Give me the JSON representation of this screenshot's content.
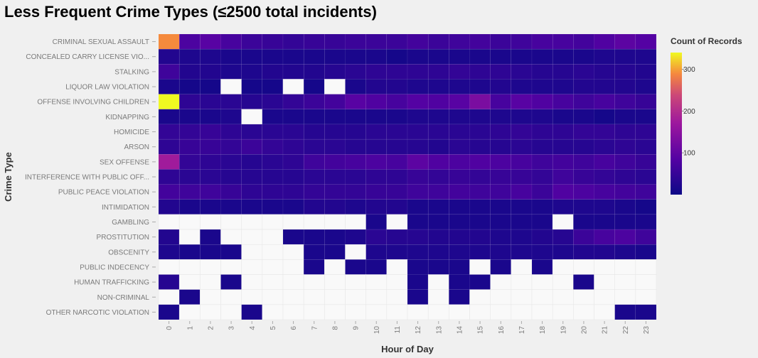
{
  "chart_data": {
    "type": "heatmap",
    "title": "Less Frequent Crime Types (≤2500 total incidents)",
    "xlabel": "Hour of Day",
    "ylabel": "Crime Type",
    "legend_title": "Count of Records",
    "legend_ticks": [
      "100",
      "200",
      "300"
    ],
    "color_range": [
      0,
      340
    ],
    "legend_placement": "right",
    "x": [
      "0",
      "1",
      "2",
      "3",
      "4",
      "5",
      "6",
      "7",
      "8",
      "9",
      "10",
      "11",
      "12",
      "13",
      "14",
      "15",
      "16",
      "17",
      "18",
      "19",
      "20",
      "21",
      "22",
      "23"
    ],
    "y": [
      "CRIMINAL SEXUAL ASSAULT",
      "CONCEALED CARRY LICENSE VIO...",
      "STALKING",
      "LIQUOR LAW VIOLATION",
      "OFFENSE INVOLVING CHILDREN",
      "KIDNAPPING",
      "HOMICIDE",
      "ARSON",
      "SEX OFFENSE",
      "INTERFERENCE WITH PUBLIC OFF...",
      "PUBLIC PEACE VIOLATION",
      "INTIMIDATION",
      "GAMBLING",
      "PROSTITUTION",
      "OBSCENITY",
      "PUBLIC INDECENCY",
      "HUMAN TRAFFICKING",
      "NON-CRIMINAL",
      "OTHER NARCOTIC VIOLATION"
    ],
    "values": [
      [
        290,
        75,
        90,
        70,
        55,
        50,
        45,
        50,
        50,
        55,
        55,
        55,
        65,
        55,
        60,
        65,
        55,
        60,
        70,
        70,
        65,
        80,
        95,
        85
      ],
      [
        25,
        20,
        20,
        15,
        15,
        15,
        15,
        15,
        15,
        15,
        15,
        10,
        15,
        15,
        15,
        15,
        15,
        15,
        15,
        15,
        15,
        20,
        20,
        20
      ],
      [
        60,
        25,
        25,
        20,
        20,
        25,
        25,
        25,
        30,
        35,
        40,
        40,
        40,
        40,
        45,
        40,
        40,
        35,
        30,
        30,
        35,
        30,
        30,
        25
      ],
      [
        15,
        10,
        10,
        null,
        10,
        10,
        null,
        10,
        null,
        15,
        25,
        25,
        20,
        20,
        20,
        20,
        25,
        20,
        20,
        20,
        25,
        25,
        25,
        20
      ],
      [
        340,
        40,
        35,
        35,
        30,
        35,
        45,
        55,
        65,
        90,
        80,
        70,
        85,
        80,
        90,
        130,
        70,
        90,
        80,
        70,
        60,
        70,
        60,
        50
      ],
      [
        15,
        15,
        15,
        20,
        null,
        15,
        15,
        15,
        15,
        15,
        15,
        15,
        20,
        20,
        20,
        20,
        20,
        20,
        20,
        15,
        15,
        10,
        15,
        15
      ],
      [
        45,
        45,
        50,
        40,
        35,
        35,
        35,
        30,
        30,
        30,
        35,
        35,
        35,
        35,
        35,
        35,
        40,
        45,
        40,
        40,
        45,
        45,
        40,
        40
      ],
      [
        40,
        50,
        50,
        45,
        55,
        45,
        40,
        35,
        35,
        30,
        30,
        30,
        30,
        25,
        35,
        30,
        30,
        35,
        30,
        30,
        30,
        35,
        40,
        35
      ],
      [
        175,
        45,
        40,
        35,
        30,
        35,
        40,
        60,
        65,
        70,
        75,
        70,
        95,
        80,
        75,
        80,
        75,
        70,
        60,
        65,
        60,
        70,
        60,
        50
      ],
      [
        40,
        35,
        35,
        30,
        30,
        30,
        30,
        35,
        35,
        35,
        40,
        40,
        50,
        45,
        50,
        45,
        50,
        50,
        45,
        60,
        50,
        45,
        40,
        35
      ],
      [
        65,
        60,
        60,
        50,
        40,
        40,
        40,
        45,
        45,
        45,
        50,
        50,
        60,
        60,
        65,
        60,
        60,
        70,
        55,
        80,
        75,
        70,
        65,
        60
      ],
      [
        25,
        15,
        15,
        15,
        15,
        15,
        15,
        25,
        25,
        20,
        25,
        25,
        15,
        15,
        15,
        15,
        15,
        15,
        15,
        20,
        20,
        20,
        15,
        10
      ],
      [
        null,
        null,
        null,
        null,
        null,
        null,
        null,
        null,
        null,
        null,
        15,
        null,
        15,
        15,
        15,
        15,
        15,
        15,
        15,
        null,
        15,
        15,
        15,
        15
      ],
      [
        25,
        null,
        15,
        null,
        null,
        null,
        15,
        15,
        15,
        20,
        35,
        30,
        30,
        25,
        25,
        25,
        20,
        20,
        25,
        30,
        55,
        70,
        75,
        60
      ],
      [
        20,
        15,
        15,
        15,
        null,
        null,
        null,
        15,
        15,
        null,
        20,
        20,
        20,
        20,
        20,
        20,
        20,
        20,
        20,
        20,
        25,
        25,
        20,
        15
      ],
      [
        null,
        null,
        null,
        null,
        null,
        null,
        null,
        15,
        null,
        15,
        15,
        null,
        15,
        15,
        15,
        null,
        15,
        null,
        15,
        null,
        null,
        null,
        null,
        null
      ],
      [
        30,
        null,
        null,
        15,
        null,
        null,
        null,
        null,
        null,
        null,
        null,
        null,
        15,
        null,
        15,
        15,
        null,
        null,
        null,
        null,
        15,
        null,
        null,
        null
      ],
      [
        null,
        15,
        null,
        null,
        null,
        null,
        null,
        null,
        null,
        null,
        null,
        null,
        15,
        null,
        15,
        null,
        null,
        null,
        null,
        null,
        null,
        null,
        null,
        null
      ],
      [
        15,
        null,
        null,
        null,
        15,
        null,
        null,
        null,
        null,
        null,
        null,
        null,
        null,
        null,
        null,
        null,
        null,
        null,
        null,
        null,
        null,
        null,
        15,
        15
      ]
    ]
  }
}
